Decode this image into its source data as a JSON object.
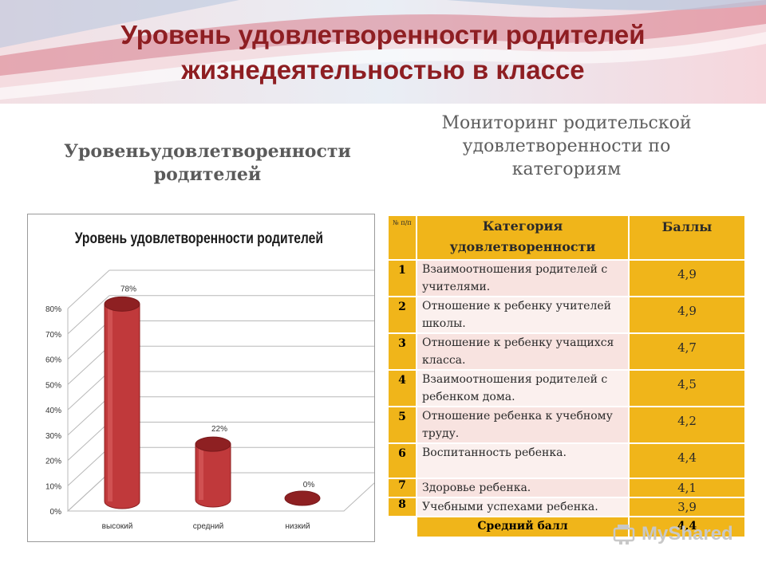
{
  "slide": {
    "title_line1": "Уровень удовлетворенности родителей",
    "title_line2": "жизнедеятельностью в классе",
    "left_caption_line1": "Уровеньудовлетворенности",
    "left_caption_line2": "родителей",
    "right_caption_line1": "Мониторинг родительской",
    "right_caption_line2": "удовлетворенности по",
    "right_caption_line3": "категориям",
    "watermark": "MyShared"
  },
  "chart_data": {
    "type": "bar",
    "title": "Уровень удовлетворенности родителей",
    "categories": [
      "высокий",
      "средний",
      "низкий"
    ],
    "values": [
      78,
      22,
      0
    ],
    "data_labels": [
      "78%",
      "22%",
      "0%"
    ],
    "y_ticks": [
      "0%",
      "10%",
      "20%",
      "30%",
      "40%",
      "50%",
      "60%",
      "70%",
      "80%"
    ],
    "ylim": [
      0,
      80
    ],
    "colors": {
      "bar": "#c0393b",
      "bar_dark": "#8e2022",
      "bar_light": "#e06a6a"
    }
  },
  "table": {
    "header": {
      "num": "№ п/п",
      "category": "Категория удовлетворенности",
      "score": "Баллы"
    },
    "rows": [
      {
        "num": "1",
        "category": "Взаимоотношения родителей с учителями.",
        "score": "4,9"
      },
      {
        "num": "2",
        "category": "Отношение к ребенку учителей школы.",
        "score": "4,9"
      },
      {
        "num": "3",
        "category": "Отношение к ребенку учащихся класса.",
        "score": "4,7"
      },
      {
        "num": "4",
        "category": "Взаимоотношения родителей с ребенком дома.",
        "score": "4,5"
      },
      {
        "num": "5",
        "category": "Отношение ребенка к учебному труду.",
        "score": "4,2"
      },
      {
        "num": "6",
        "category": "Воспитанность ребенка.",
        "score": "4,4"
      },
      {
        "num": "7",
        "category": "Здоровье ребенка.",
        "score": "4,1"
      },
      {
        "num": "8",
        "category": "Учебными успехами ребенка.",
        "score": "3,9"
      }
    ],
    "footer": {
      "label": "Средний балл",
      "value": "4,4"
    }
  },
  "colors": {
    "title": "#8e1e22",
    "table_accent": "#f0b51a",
    "row_fill": "#f8e3e0"
  }
}
